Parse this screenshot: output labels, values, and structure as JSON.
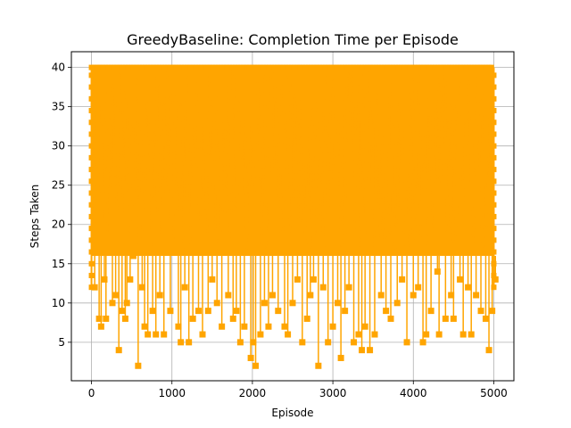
{
  "chart_data": {
    "type": "line",
    "title": "GreedyBaseline: Completion Time per Episode",
    "xlabel": "Episode",
    "ylabel": "Steps Taken",
    "xlim": [
      -250,
      5250
    ],
    "ylim": [
      0.1,
      42
    ],
    "xticks": [
      0,
      1000,
      2000,
      3000,
      4000,
      5000
    ],
    "yticks": [
      5,
      10,
      15,
      20,
      25,
      30,
      35,
      40
    ],
    "grid": true,
    "marker": "square",
    "series": [
      {
        "color": "#FFA500",
        "n_points": 5000,
        "max_value": 40,
        "dense_band": [
          16,
          40
        ],
        "low_points": [
          {
            "x": 40,
            "y": 12
          },
          {
            "x": 95,
            "y": 8
          },
          {
            "x": 120,
            "y": 7
          },
          {
            "x": 160,
            "y": 13
          },
          {
            "x": 180,
            "y": 8
          },
          {
            "x": 260,
            "y": 10
          },
          {
            "x": 300,
            "y": 11
          },
          {
            "x": 340,
            "y": 4
          },
          {
            "x": 380,
            "y": 9
          },
          {
            "x": 420,
            "y": 8
          },
          {
            "x": 440,
            "y": 10
          },
          {
            "x": 480,
            "y": 13
          },
          {
            "x": 520,
            "y": 16
          },
          {
            "x": 580,
            "y": 2
          },
          {
            "x": 630,
            "y": 12
          },
          {
            "x": 660,
            "y": 7
          },
          {
            "x": 700,
            "y": 6
          },
          {
            "x": 760,
            "y": 9
          },
          {
            "x": 800,
            "y": 6
          },
          {
            "x": 850,
            "y": 11
          },
          {
            "x": 900,
            "y": 6
          },
          {
            "x": 980,
            "y": 9
          },
          {
            "x": 1080,
            "y": 7
          },
          {
            "x": 1110,
            "y": 5
          },
          {
            "x": 1160,
            "y": 12
          },
          {
            "x": 1210,
            "y": 5
          },
          {
            "x": 1260,
            "y": 8
          },
          {
            "x": 1330,
            "y": 9
          },
          {
            "x": 1380,
            "y": 6
          },
          {
            "x": 1450,
            "y": 9
          },
          {
            "x": 1500,
            "y": 13
          },
          {
            "x": 1560,
            "y": 10
          },
          {
            "x": 1620,
            "y": 7
          },
          {
            "x": 1700,
            "y": 11
          },
          {
            "x": 1760,
            "y": 8
          },
          {
            "x": 1800,
            "y": 9
          },
          {
            "x": 1850,
            "y": 5
          },
          {
            "x": 1900,
            "y": 7
          },
          {
            "x": 1980,
            "y": 3
          },
          {
            "x": 2010,
            "y": 5
          },
          {
            "x": 2040,
            "y": 2
          },
          {
            "x": 2100,
            "y": 6
          },
          {
            "x": 2150,
            "y": 10
          },
          {
            "x": 2200,
            "y": 7
          },
          {
            "x": 2250,
            "y": 11
          },
          {
            "x": 2320,
            "y": 9
          },
          {
            "x": 2400,
            "y": 7
          },
          {
            "x": 2440,
            "y": 6
          },
          {
            "x": 2500,
            "y": 10
          },
          {
            "x": 2560,
            "y": 13
          },
          {
            "x": 2620,
            "y": 5
          },
          {
            "x": 2680,
            "y": 8
          },
          {
            "x": 2720,
            "y": 11
          },
          {
            "x": 2760,
            "y": 13
          },
          {
            "x": 2820,
            "y": 2
          },
          {
            "x": 2880,
            "y": 12
          },
          {
            "x": 2940,
            "y": 5
          },
          {
            "x": 3000,
            "y": 7
          },
          {
            "x": 3060,
            "y": 10
          },
          {
            "x": 3100,
            "y": 3
          },
          {
            "x": 3150,
            "y": 9
          },
          {
            "x": 3200,
            "y": 12
          },
          {
            "x": 3260,
            "y": 5
          },
          {
            "x": 3320,
            "y": 6
          },
          {
            "x": 3360,
            "y": 4
          },
          {
            "x": 3400,
            "y": 7
          },
          {
            "x": 3460,
            "y": 4
          },
          {
            "x": 3520,
            "y": 6
          },
          {
            "x": 3600,
            "y": 11
          },
          {
            "x": 3660,
            "y": 9
          },
          {
            "x": 3720,
            "y": 8
          },
          {
            "x": 3800,
            "y": 10
          },
          {
            "x": 3860,
            "y": 13
          },
          {
            "x": 3920,
            "y": 5
          },
          {
            "x": 4000,
            "y": 11
          },
          {
            "x": 4060,
            "y": 12
          },
          {
            "x": 4120,
            "y": 5
          },
          {
            "x": 4160,
            "y": 6
          },
          {
            "x": 4220,
            "y": 9
          },
          {
            "x": 4300,
            "y": 14
          },
          {
            "x": 4320,
            "y": 6
          },
          {
            "x": 4400,
            "y": 8
          },
          {
            "x": 4470,
            "y": 11
          },
          {
            "x": 4500,
            "y": 8
          },
          {
            "x": 4580,
            "y": 13
          },
          {
            "x": 4620,
            "y": 6
          },
          {
            "x": 4680,
            "y": 12
          },
          {
            "x": 4720,
            "y": 6
          },
          {
            "x": 4780,
            "y": 11
          },
          {
            "x": 4840,
            "y": 9
          },
          {
            "x": 4900,
            "y": 8
          },
          {
            "x": 4940,
            "y": 4
          },
          {
            "x": 4980,
            "y": 9
          },
          {
            "x": 5020,
            "y": 13
          }
        ]
      }
    ]
  }
}
